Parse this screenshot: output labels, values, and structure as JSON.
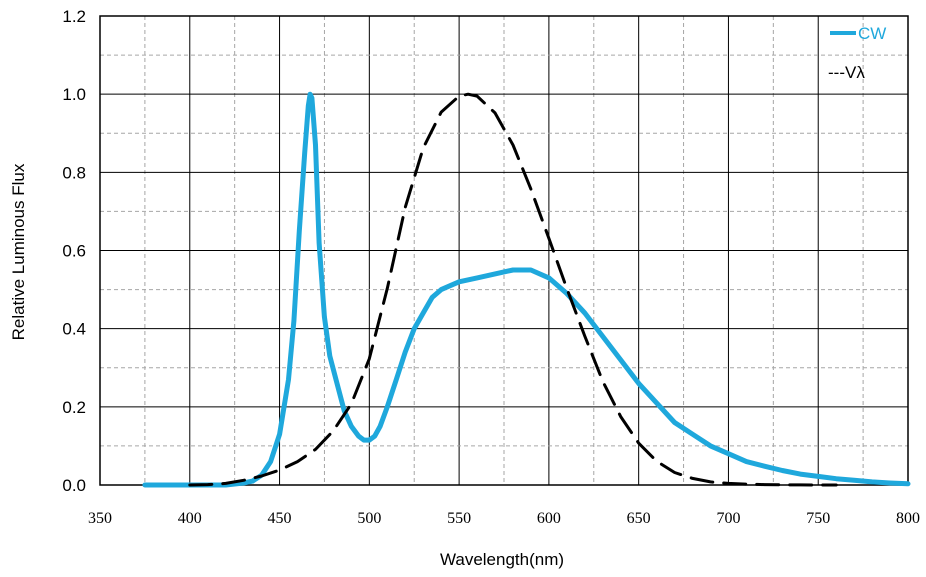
{
  "chart_data": {
    "type": "line",
    "title": "",
    "xlabel": "Wavelength(nm)",
    "ylabel": "Relative Luminous Flux",
    "xlim": [
      350,
      800
    ],
    "ylim": [
      0,
      1.2
    ],
    "x_ticks": [
      350,
      400,
      450,
      500,
      550,
      600,
      650,
      700,
      750,
      800
    ],
    "x_tick_labels": [
      "350",
      "400",
      "450",
      "500",
      "550",
      "600",
      "650",
      "700",
      "750",
      "800"
    ],
    "y_ticks": [
      0,
      0.2,
      0.4,
      0.6,
      0.8,
      1.0,
      1.2
    ],
    "y_tick_labels": [
      "0.0",
      "0.2",
      "0.4",
      "0.6",
      "0.8",
      "1.0",
      "1.2"
    ],
    "grid": true,
    "legend_position": "top-right",
    "series": [
      {
        "name": "CW",
        "legend_label": "CW",
        "color": "#1fa8dc",
        "style": "solid",
        "x": [
          375,
          400,
          420,
          430,
          435,
          440,
          445,
          450,
          455,
          458,
          461,
          464,
          466,
          467,
          468,
          470,
          472,
          475,
          478,
          482,
          486,
          490,
          494,
          497,
          500,
          503,
          506,
          510,
          515,
          520,
          525,
          530,
          535,
          540,
          545,
          550,
          560,
          570,
          580,
          590,
          600,
          610,
          620,
          630,
          640,
          650,
          660,
          670,
          680,
          690,
          700,
          710,
          720,
          730,
          740,
          750,
          760,
          770,
          780,
          790,
          800
        ],
        "y": [
          0.0,
          0.0,
          0.0,
          0.005,
          0.01,
          0.025,
          0.06,
          0.13,
          0.27,
          0.42,
          0.65,
          0.85,
          0.97,
          1.0,
          0.99,
          0.87,
          0.62,
          0.43,
          0.33,
          0.26,
          0.19,
          0.15,
          0.125,
          0.115,
          0.115,
          0.125,
          0.15,
          0.2,
          0.27,
          0.34,
          0.4,
          0.44,
          0.48,
          0.5,
          0.51,
          0.52,
          0.53,
          0.54,
          0.55,
          0.55,
          0.53,
          0.49,
          0.44,
          0.38,
          0.32,
          0.26,
          0.21,
          0.16,
          0.13,
          0.1,
          0.08,
          0.06,
          0.048,
          0.037,
          0.028,
          0.022,
          0.016,
          0.012,
          0.008,
          0.005,
          0.003
        ]
      },
      {
        "name": "Vλ",
        "legend_label": "---Vλ",
        "color": "#000000",
        "style": "dashed",
        "x": [
          400,
          410,
          420,
          430,
          440,
          450,
          460,
          470,
          480,
          490,
          500,
          510,
          520,
          530,
          540,
          550,
          555,
          560,
          570,
          580,
          590,
          600,
          610,
          620,
          630,
          640,
          650,
          660,
          670,
          680,
          690,
          700,
          710,
          720,
          730,
          740,
          750,
          760
        ],
        "y": [
          0.0,
          0.001,
          0.004,
          0.012,
          0.023,
          0.038,
          0.06,
          0.091,
          0.139,
          0.208,
          0.323,
          0.503,
          0.71,
          0.862,
          0.954,
          0.995,
          1.0,
          0.995,
          0.952,
          0.87,
          0.757,
          0.631,
          0.503,
          0.381,
          0.265,
          0.175,
          0.107,
          0.061,
          0.032,
          0.017,
          0.008,
          0.004,
          0.002,
          0.001,
          0.0005,
          0.0002,
          0.0001,
          0.0
        ]
      }
    ]
  }
}
